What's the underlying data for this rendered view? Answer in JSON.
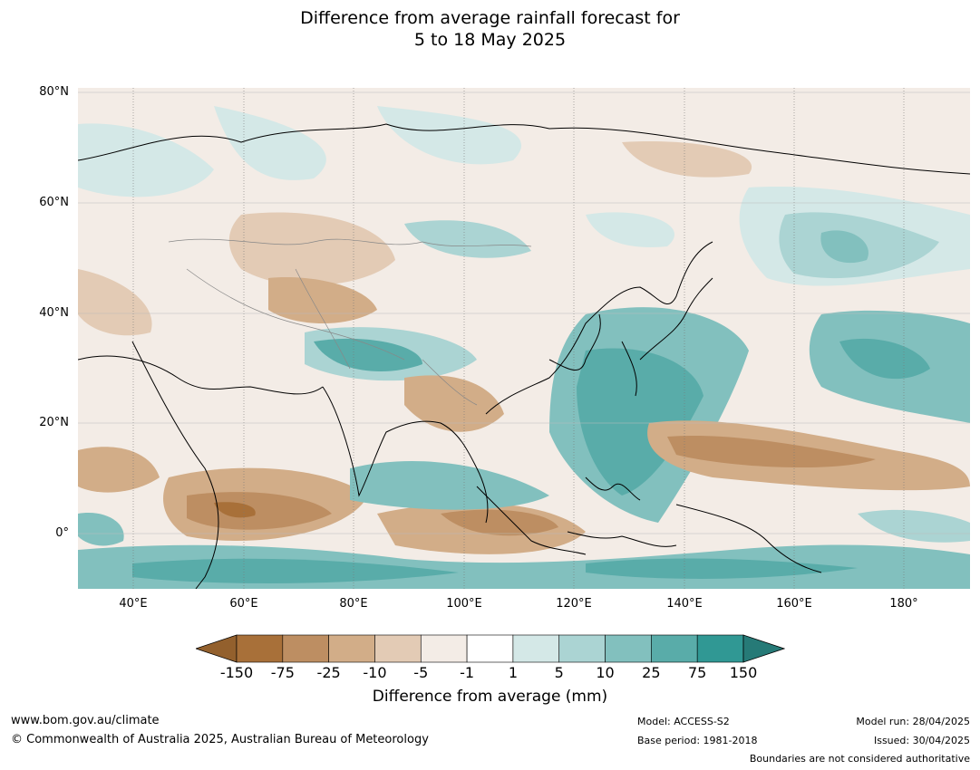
{
  "title": {
    "line1": "Difference from average rainfall forecast for",
    "line2": "5 to 18 May 2025"
  },
  "map": {
    "lat_labels": [
      "80°N",
      "60°N",
      "40°N",
      "20°N",
      "0°"
    ],
    "lon_labels": [
      "40°E",
      "60°E",
      "80°E",
      "100°E",
      "120°E",
      "140°E",
      "160°E",
      "180°"
    ]
  },
  "legend": {
    "title": "Difference from average (mm)",
    "ticks": [
      "-150",
      "-75",
      "-25",
      "-10",
      "-5",
      "-1",
      "1",
      "5",
      "10",
      "25",
      "75",
      "150"
    ],
    "colors": [
      "#a87039",
      "#bd8e62",
      "#d2ad88",
      "#e3cbb5",
      "#f3ece6",
      "#ffffff",
      "#d4e8e7",
      "#abd4d3",
      "#82c0be",
      "#59aca9",
      "#309894"
    ],
    "low_arrow_color": "#93602d",
    "high_arrow_color": "#267a77"
  },
  "footer": {
    "website": "www.bom.gov.au/climate",
    "copyright": "© Commonwealth of Australia 2025, Australian Bureau of Meteorology",
    "model": "Model: ACCESS-S2",
    "base_period": "Base period: 1981-2018",
    "model_run": "Model run: 28/04/2025",
    "issued": "Issued: 30/04/2025",
    "disclaimer": "Boundaries are not considered authoritative"
  }
}
